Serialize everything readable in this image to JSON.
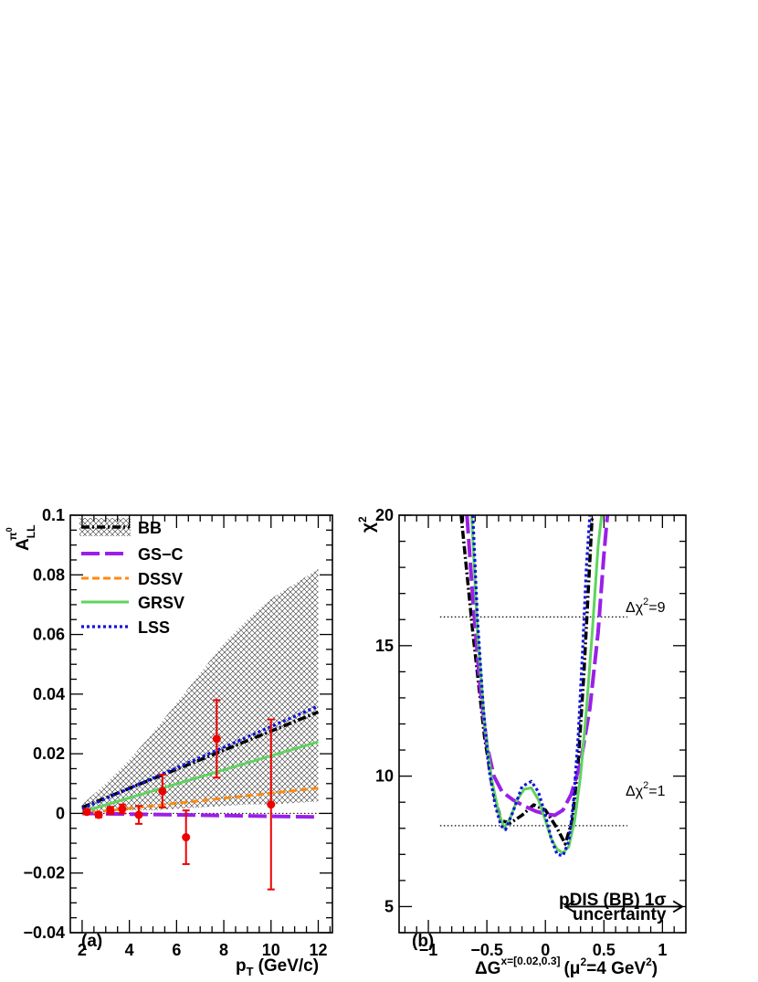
{
  "chart_data": [
    {
      "type": "line",
      "panel_label": "(a)",
      "xlabel": "p",
      "xlabel_sub": "T",
      "xlabel_unit": "(GeV/c)",
      "ylabel": "A",
      "ylabel_sub": "LL",
      "ylabel_sup": "π",
      "ylabel_supsup": "0",
      "xlim": [
        1.5,
        12.6
      ],
      "ylim": [
        -0.04,
        0.1
      ],
      "xticks": [
        "2",
        "4",
        "6",
        "8",
        "10",
        "12"
      ],
      "yticks": [
        "−0.04",
        "−0.02",
        "0",
        "0.02",
        "0.04",
        "0.06",
        "0.08",
        "0.1"
      ],
      "zero_line": true,
      "band": {
        "name": "BB",
        "x": [
          2,
          3,
          4,
          5,
          6,
          7,
          8,
          9,
          10,
          11,
          12
        ],
        "lower": [
          0.0,
          0.0005,
          0.001,
          0.001,
          0.0015,
          0.002,
          0.0025,
          0.003,
          0.003,
          0.0035,
          0.004
        ],
        "upper": [
          0.003,
          0.01,
          0.018,
          0.027,
          0.037,
          0.047,
          0.057,
          0.065,
          0.072,
          0.077,
          0.082
        ]
      },
      "series": [
        {
          "name": "BB",
          "color": "#000000",
          "dash": "dashdot",
          "x": [
            2,
            12
          ],
          "y": [
            0.002,
            0.034
          ]
        },
        {
          "name": "GS−C",
          "color": "#9b1fe8",
          "dash": "longdash",
          "x": [
            2,
            12
          ],
          "y": [
            0.0,
            -0.0012
          ]
        },
        {
          "name": "DSSV",
          "color": "#ff8a10",
          "dash": "dash",
          "x": [
            2,
            12
          ],
          "y": [
            0.0,
            0.0085
          ]
        },
        {
          "name": "GRSV",
          "color": "#5fd35f",
          "dash": "solid",
          "x": [
            2,
            12
          ],
          "y": [
            0.0005,
            0.024
          ]
        },
        {
          "name": "LSS",
          "color": "#1212dd",
          "dash": "dot",
          "x": [
            2,
            12
          ],
          "y": [
            0.0015,
            0.036
          ]
        }
      ],
      "points": {
        "color": "#ee0000",
        "x": [
          2.2,
          2.7,
          3.2,
          3.7,
          4.4,
          5.4,
          6.4,
          7.7,
          10.0
        ],
        "y": [
          0.0005,
          -0.0005,
          0.001,
          0.0015,
          -0.0005,
          0.0075,
          -0.008,
          0.025,
          0.003
        ],
        "err": [
          0.0008,
          0.0008,
          0.0012,
          0.0015,
          0.003,
          0.0055,
          0.009,
          0.013,
          0.0285
        ]
      }
    },
    {
      "type": "line",
      "panel_label": "(b)",
      "xlabel": "ΔG",
      "xlabel_sup": "x=[0.02,0.3]",
      "xlabel_rest": "(μ",
      "xlabel_rest2": "=4 GeV",
      "xlabel_end": ")",
      "ylabel": "χ",
      "xlim": [
        -1.25,
        1.2
      ],
      "ylim": [
        4,
        20
      ],
      "xticks": [
        "−1",
        "−0.5",
        "0",
        "0.5",
        "1"
      ],
      "yticks": [
        "5",
        "10",
        "15",
        "20"
      ],
      "hlines": [
        {
          "label": "Δχ",
          "label_rest": "=9",
          "y": 16.1,
          "x": [
            -0.9,
            0.7
          ]
        },
        {
          "label": "Δχ",
          "label_rest": "=1",
          "y": 8.1,
          "x": [
            -0.9,
            0.7
          ]
        }
      ],
      "uncertainty": {
        "line1": "pDIS (BB) 1σ",
        "line2": "uncertainty",
        "x": [
          0.17,
          1.17
        ],
        "center": 0.67,
        "y": 5.0
      },
      "series": [
        {
          "name": "BB",
          "color": "#000000",
          "dash": "dashdot",
          "x": [
            -0.72,
            -0.62,
            -0.52,
            -0.45,
            -0.38,
            -0.3,
            -0.2,
            -0.1,
            0.0,
            0.1,
            0.17,
            0.23,
            0.28,
            0.33,
            0.4
          ],
          "y": [
            20,
            15.5,
            11.5,
            9.5,
            8.3,
            8.2,
            8.5,
            8.9,
            8.7,
            8.0,
            7.4,
            8.3,
            10.5,
            14.0,
            20
          ]
        },
        {
          "name": "GS−C",
          "color": "#9b1fe8",
          "dash": "longdash",
          "x": [
            -0.67,
            -0.62,
            -0.56,
            -0.5,
            -0.44,
            -0.37,
            -0.28,
            -0.18,
            -0.08,
            0.0,
            0.08,
            0.15,
            0.22,
            0.3,
            0.38,
            0.45,
            0.5,
            0.53
          ],
          "y": [
            20,
            16.8,
            13.5,
            11.2,
            10.0,
            9.4,
            9.1,
            8.85,
            8.65,
            8.55,
            8.5,
            8.7,
            9.3,
            10.5,
            12.6,
            15.5,
            18.5,
            20
          ]
        },
        {
          "name": "GRSV",
          "color": "#5fd35f",
          "dash": "solid",
          "x": [
            -0.63,
            -0.58,
            -0.52,
            -0.46,
            -0.4,
            -0.35,
            -0.3,
            -0.24,
            -0.18,
            -0.12,
            -0.06,
            0.0,
            0.05,
            0.1,
            0.15,
            0.2,
            0.25,
            0.3,
            0.35,
            0.4,
            0.45,
            0.48
          ],
          "y": [
            20,
            15.5,
            12.0,
            9.9,
            8.6,
            8.0,
            8.4,
            9.1,
            9.5,
            9.55,
            9.1,
            8.3,
            7.6,
            7.2,
            7.05,
            7.3,
            8.3,
            10.0,
            12.5,
            15.5,
            18.8,
            20
          ]
        },
        {
          "name": "LSS",
          "color": "#1212dd",
          "dash": "dot",
          "x": [
            -0.62,
            -0.58,
            -0.53,
            -0.48,
            -0.43,
            -0.38,
            -0.34,
            -0.28,
            -0.2,
            -0.12,
            -0.06,
            0.0,
            0.05,
            0.1,
            0.15,
            0.2,
            0.24,
            0.28,
            0.32,
            0.35,
            0.38
          ],
          "y": [
            20,
            16.0,
            12.6,
            10.2,
            8.9,
            8.1,
            7.95,
            8.6,
            9.6,
            9.8,
            9.4,
            8.5,
            7.6,
            7.0,
            6.95,
            7.5,
            9.0,
            11.5,
            15.0,
            18.0,
            20
          ]
        }
      ]
    }
  ],
  "legend": [
    {
      "name": "BB"
    },
    {
      "name": "GS−C"
    },
    {
      "name": "DSSV"
    },
    {
      "name": "GRSV"
    },
    {
      "name": "LSS"
    }
  ]
}
